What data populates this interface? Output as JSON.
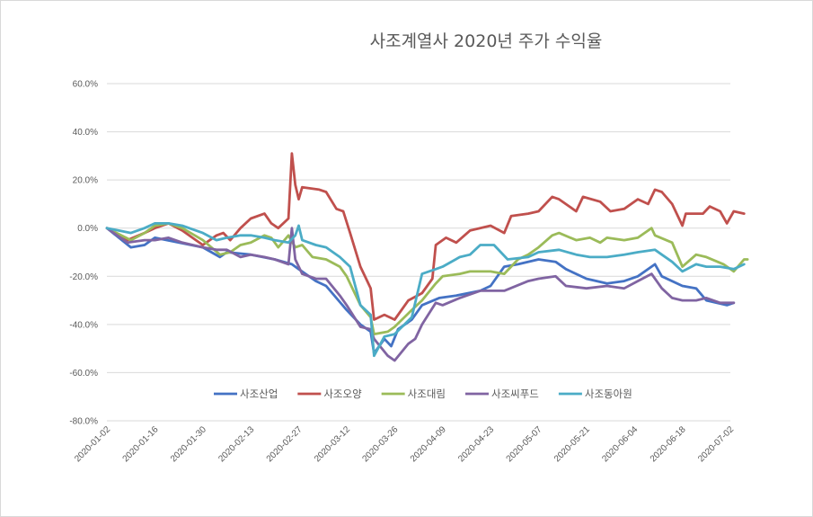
{
  "chart_data": {
    "type": "line",
    "title": "사조계열사 2020년 주가 수익율",
    "xlabel": "",
    "ylabel": "",
    "ylim": [
      -0.8,
      0.6
    ],
    "yticks": [
      0.6,
      0.4,
      0.2,
      0.0,
      -0.2,
      -0.4,
      -0.6,
      -0.8
    ],
    "ytick_labels": [
      "60.0%",
      "40.0%",
      "20.0%",
      "0.0%",
      "-20.0%",
      "-40.0%",
      "-60.0%",
      "-80.0%"
    ],
    "xticks": [
      "2020-01-02",
      "2020-01-16",
      "2020-01-30",
      "2020-02-13",
      "2020-02-27",
      "2020-03-12",
      "2020-03-26",
      "2020-04-09",
      "2020-04-23",
      "2020-05-07",
      "2020-05-21",
      "2020-06-04",
      "2020-06-18",
      "2020-07-02"
    ],
    "grid": true,
    "legend_position": "bottom-inside",
    "series": [
      {
        "name": "사조산업",
        "color": "#4472C4",
        "points": [
          [
            "2020-01-02",
            0.0
          ],
          [
            "2020-01-09",
            -0.08
          ],
          [
            "2020-01-13",
            -0.07
          ],
          [
            "2020-01-16",
            -0.04
          ],
          [
            "2020-01-23",
            -0.06
          ],
          [
            "2020-01-30",
            -0.08
          ],
          [
            "2020-02-04",
            -0.12
          ],
          [
            "2020-02-06",
            -0.1
          ],
          [
            "2020-02-13",
            -0.11
          ],
          [
            "2020-02-20",
            -0.13
          ],
          [
            "2020-02-25",
            -0.15
          ],
          [
            "2020-02-27",
            -0.17
          ],
          [
            "2020-03-03",
            -0.22
          ],
          [
            "2020-03-06",
            -0.24
          ],
          [
            "2020-03-12",
            -0.34
          ],
          [
            "2020-03-16",
            -0.4
          ],
          [
            "2020-03-19",
            -0.43
          ],
          [
            "2020-03-20",
            -0.52
          ],
          [
            "2020-03-23",
            -0.46
          ],
          [
            "2020-03-25",
            -0.49
          ],
          [
            "2020-03-27",
            -0.42
          ],
          [
            "2020-03-31",
            -0.38
          ],
          [
            "2020-04-03",
            -0.32
          ],
          [
            "2020-04-08",
            -0.29
          ],
          [
            "2020-04-13",
            -0.28
          ],
          [
            "2020-04-20",
            -0.26
          ],
          [
            "2020-04-23",
            -0.24
          ],
          [
            "2020-04-27",
            -0.16
          ],
          [
            "2020-05-01",
            -0.15
          ],
          [
            "2020-05-07",
            -0.13
          ],
          [
            "2020-05-12",
            -0.14
          ],
          [
            "2020-05-15",
            -0.17
          ],
          [
            "2020-05-21",
            -0.21
          ],
          [
            "2020-05-27",
            -0.23
          ],
          [
            "2020-06-01",
            -0.22
          ],
          [
            "2020-06-05",
            -0.2
          ],
          [
            "2020-06-10",
            -0.15
          ],
          [
            "2020-06-12",
            -0.2
          ],
          [
            "2020-06-18",
            -0.24
          ],
          [
            "2020-06-22",
            -0.25
          ],
          [
            "2020-06-25",
            -0.3
          ],
          [
            "2020-07-01",
            -0.32
          ],
          [
            "2020-07-03",
            -0.31
          ]
        ]
      },
      {
        "name": "사조오양",
        "color": "#C0504D",
        "points": [
          [
            "2020-01-02",
            0.0
          ],
          [
            "2020-01-08",
            -0.05
          ],
          [
            "2020-01-13",
            -0.02
          ],
          [
            "2020-01-16",
            0.0
          ],
          [
            "2020-01-20",
            0.02
          ],
          [
            "2020-01-24",
            -0.01
          ],
          [
            "2020-01-28",
            -0.05
          ],
          [
            "2020-01-30",
            -0.07
          ],
          [
            "2020-02-03",
            -0.03
          ],
          [
            "2020-02-05",
            -0.02
          ],
          [
            "2020-02-07",
            -0.05
          ],
          [
            "2020-02-10",
            0.0
          ],
          [
            "2020-02-13",
            0.04
          ],
          [
            "2020-02-17",
            0.06
          ],
          [
            "2020-02-19",
            0.02
          ],
          [
            "2020-02-21",
            0.0
          ],
          [
            "2020-02-24",
            0.04
          ],
          [
            "2020-02-25",
            0.31
          ],
          [
            "2020-02-26",
            0.18
          ],
          [
            "2020-02-27",
            0.12
          ],
          [
            "2020-02-28",
            0.17
          ],
          [
            "2020-03-04",
            0.16
          ],
          [
            "2020-03-06",
            0.15
          ],
          [
            "2020-03-09",
            0.08
          ],
          [
            "2020-03-11",
            0.07
          ],
          [
            "2020-03-13",
            -0.02
          ],
          [
            "2020-03-16",
            -0.16
          ],
          [
            "2020-03-18",
            -0.22
          ],
          [
            "2020-03-19",
            -0.25
          ],
          [
            "2020-03-20",
            -0.38
          ],
          [
            "2020-03-23",
            -0.36
          ],
          [
            "2020-03-26",
            -0.38
          ],
          [
            "2020-03-30",
            -0.3
          ],
          [
            "2020-04-03",
            -0.27
          ],
          [
            "2020-04-06",
            -0.21
          ],
          [
            "2020-04-07",
            -0.07
          ],
          [
            "2020-04-10",
            -0.04
          ],
          [
            "2020-04-13",
            -0.06
          ],
          [
            "2020-04-17",
            -0.01
          ],
          [
            "2020-04-23",
            0.01
          ],
          [
            "2020-04-27",
            -0.02
          ],
          [
            "2020-04-29",
            0.05
          ],
          [
            "2020-05-04",
            0.06
          ],
          [
            "2020-05-07",
            0.07
          ],
          [
            "2020-05-11",
            0.13
          ],
          [
            "2020-05-13",
            0.12
          ],
          [
            "2020-05-18",
            0.07
          ],
          [
            "2020-05-20",
            0.13
          ],
          [
            "2020-05-25",
            0.11
          ],
          [
            "2020-05-28",
            0.07
          ],
          [
            "2020-06-01",
            0.08
          ],
          [
            "2020-06-05",
            0.12
          ],
          [
            "2020-06-08",
            0.1
          ],
          [
            "2020-06-10",
            0.16
          ],
          [
            "2020-06-12",
            0.15
          ],
          [
            "2020-06-15",
            0.1
          ],
          [
            "2020-06-18",
            0.01
          ],
          [
            "2020-06-19",
            0.06
          ],
          [
            "2020-06-24",
            0.06
          ],
          [
            "2020-06-26",
            0.09
          ],
          [
            "2020-06-29",
            0.07
          ],
          [
            "2020-07-01",
            0.02
          ],
          [
            "2020-07-03",
            0.07
          ],
          [
            "2020-07-06",
            0.06
          ]
        ]
      },
      {
        "name": "사조대림",
        "color": "#9BBB59",
        "points": [
          [
            "2020-01-02",
            0.0
          ],
          [
            "2020-01-09",
            -0.05
          ],
          [
            "2020-01-13",
            -0.02
          ],
          [
            "2020-01-16",
            0.01
          ],
          [
            "2020-01-20",
            0.02
          ],
          [
            "2020-01-24",
            0.0
          ],
          [
            "2020-01-30",
            -0.05
          ],
          [
            "2020-02-04",
            -0.11
          ],
          [
            "2020-02-07",
            -0.1
          ],
          [
            "2020-02-10",
            -0.07
          ],
          [
            "2020-02-13",
            -0.06
          ],
          [
            "2020-02-17",
            -0.03
          ],
          [
            "2020-02-19",
            -0.04
          ],
          [
            "2020-02-21",
            -0.08
          ],
          [
            "2020-02-24",
            -0.03
          ],
          [
            "2020-02-26",
            -0.08
          ],
          [
            "2020-02-28",
            -0.07
          ],
          [
            "2020-03-02",
            -0.12
          ],
          [
            "2020-03-06",
            -0.13
          ],
          [
            "2020-03-10",
            -0.16
          ],
          [
            "2020-03-12",
            -0.2
          ],
          [
            "2020-03-16",
            -0.32
          ],
          [
            "2020-03-19",
            -0.37
          ],
          [
            "2020-03-20",
            -0.44
          ],
          [
            "2020-03-24",
            -0.43
          ],
          [
            "2020-03-26",
            -0.41
          ],
          [
            "2020-03-31",
            -0.34
          ],
          [
            "2020-04-03",
            -0.3
          ],
          [
            "2020-04-07",
            -0.23
          ],
          [
            "2020-04-09",
            -0.2
          ],
          [
            "2020-04-14",
            -0.19
          ],
          [
            "2020-04-17",
            -0.18
          ],
          [
            "2020-04-23",
            -0.18
          ],
          [
            "2020-04-27",
            -0.19
          ],
          [
            "2020-05-01",
            -0.13
          ],
          [
            "2020-05-04",
            -0.11
          ],
          [
            "2020-05-07",
            -0.08
          ],
          [
            "2020-05-11",
            -0.03
          ],
          [
            "2020-05-13",
            -0.02
          ],
          [
            "2020-05-18",
            -0.05
          ],
          [
            "2020-05-22",
            -0.04
          ],
          [
            "2020-05-25",
            -0.06
          ],
          [
            "2020-05-27",
            -0.04
          ],
          [
            "2020-06-01",
            -0.05
          ],
          [
            "2020-06-05",
            -0.04
          ],
          [
            "2020-06-09",
            0.0
          ],
          [
            "2020-06-10",
            -0.03
          ],
          [
            "2020-06-15",
            -0.06
          ],
          [
            "2020-06-18",
            -0.16
          ],
          [
            "2020-06-22",
            -0.11
          ],
          [
            "2020-06-25",
            -0.12
          ],
          [
            "2020-06-30",
            -0.15
          ],
          [
            "2020-07-03",
            -0.18
          ],
          [
            "2020-07-06",
            -0.13
          ],
          [
            "2020-07-07",
            -0.13
          ]
        ]
      },
      {
        "name": "사조씨푸드",
        "color": "#8064A2",
        "points": [
          [
            "2020-01-02",
            0.0
          ],
          [
            "2020-01-08",
            -0.06
          ],
          [
            "2020-01-13",
            -0.05
          ],
          [
            "2020-01-16",
            -0.05
          ],
          [
            "2020-01-20",
            -0.04
          ],
          [
            "2020-01-24",
            -0.06
          ],
          [
            "2020-01-30",
            -0.08
          ],
          [
            "2020-02-03",
            -0.09
          ],
          [
            "2020-02-06",
            -0.09
          ],
          [
            "2020-02-10",
            -0.12
          ],
          [
            "2020-02-13",
            -0.11
          ],
          [
            "2020-02-17",
            -0.12
          ],
          [
            "2020-02-20",
            -0.13
          ],
          [
            "2020-02-24",
            -0.15
          ],
          [
            "2020-02-25",
            0.0
          ],
          [
            "2020-02-26",
            -0.13
          ],
          [
            "2020-02-28",
            -0.19
          ],
          [
            "2020-03-03",
            -0.21
          ],
          [
            "2020-03-06",
            -0.21
          ],
          [
            "2020-03-10",
            -0.28
          ],
          [
            "2020-03-12",
            -0.32
          ],
          [
            "2020-03-16",
            -0.41
          ],
          [
            "2020-03-19",
            -0.42
          ],
          [
            "2020-03-20",
            -0.46
          ],
          [
            "2020-03-24",
            -0.53
          ],
          [
            "2020-03-26",
            -0.55
          ],
          [
            "2020-03-30",
            -0.48
          ],
          [
            "2020-04-01",
            -0.46
          ],
          [
            "2020-04-03",
            -0.4
          ],
          [
            "2020-04-07",
            -0.31
          ],
          [
            "2020-04-09",
            -0.32
          ],
          [
            "2020-04-14",
            -0.29
          ],
          [
            "2020-04-20",
            -0.26
          ],
          [
            "2020-04-27",
            -0.26
          ],
          [
            "2020-05-04",
            -0.22
          ],
          [
            "2020-05-07",
            -0.21
          ],
          [
            "2020-05-12",
            -0.2
          ],
          [
            "2020-05-15",
            -0.24
          ],
          [
            "2020-05-21",
            -0.25
          ],
          [
            "2020-05-27",
            -0.24
          ],
          [
            "2020-06-01",
            -0.25
          ],
          [
            "2020-06-05",
            -0.22
          ],
          [
            "2020-06-09",
            -0.19
          ],
          [
            "2020-06-12",
            -0.25
          ],
          [
            "2020-06-15",
            -0.29
          ],
          [
            "2020-06-18",
            -0.3
          ],
          [
            "2020-06-22",
            -0.3
          ],
          [
            "2020-06-25",
            -0.29
          ],
          [
            "2020-06-29",
            -0.31
          ],
          [
            "2020-07-03",
            -0.31
          ]
        ]
      },
      {
        "name": "사조동아원",
        "color": "#4BACC6",
        "points": [
          [
            "2020-01-02",
            0.0
          ],
          [
            "2020-01-09",
            -0.02
          ],
          [
            "2020-01-13",
            0.0
          ],
          [
            "2020-01-16",
            0.02
          ],
          [
            "2020-01-20",
            0.02
          ],
          [
            "2020-01-24",
            0.01
          ],
          [
            "2020-01-30",
            -0.02
          ],
          [
            "2020-02-03",
            -0.05
          ],
          [
            "2020-02-06",
            -0.04
          ],
          [
            "2020-02-10",
            -0.03
          ],
          [
            "2020-02-13",
            -0.03
          ],
          [
            "2020-02-17",
            -0.04
          ],
          [
            "2020-02-20",
            -0.05
          ],
          [
            "2020-02-24",
            -0.06
          ],
          [
            "2020-02-26",
            -0.03
          ],
          [
            "2020-02-27",
            0.01
          ],
          [
            "2020-02-28",
            -0.05
          ],
          [
            "2020-03-03",
            -0.07
          ],
          [
            "2020-03-06",
            -0.08
          ],
          [
            "2020-03-10",
            -0.12
          ],
          [
            "2020-03-13",
            -0.16
          ],
          [
            "2020-03-16",
            -0.32
          ],
          [
            "2020-03-19",
            -0.36
          ],
          [
            "2020-03-20",
            -0.53
          ],
          [
            "2020-03-23",
            -0.45
          ],
          [
            "2020-03-26",
            -0.44
          ],
          [
            "2020-03-31",
            -0.37
          ],
          [
            "2020-04-03",
            -0.19
          ],
          [
            "2020-04-07",
            -0.17
          ],
          [
            "2020-04-09",
            -0.16
          ],
          [
            "2020-04-14",
            -0.12
          ],
          [
            "2020-04-17",
            -0.11
          ],
          [
            "2020-04-20",
            -0.07
          ],
          [
            "2020-04-24",
            -0.07
          ],
          [
            "2020-04-28",
            -0.13
          ],
          [
            "2020-05-04",
            -0.12
          ],
          [
            "2020-05-07",
            -0.1
          ],
          [
            "2020-05-13",
            -0.09
          ],
          [
            "2020-05-18",
            -0.11
          ],
          [
            "2020-05-22",
            -0.12
          ],
          [
            "2020-05-27",
            -0.12
          ],
          [
            "2020-06-01",
            -0.11
          ],
          [
            "2020-06-05",
            -0.1
          ],
          [
            "2020-06-10",
            -0.09
          ],
          [
            "2020-06-12",
            -0.11
          ],
          [
            "2020-06-15",
            -0.14
          ],
          [
            "2020-06-18",
            -0.18
          ],
          [
            "2020-06-22",
            -0.15
          ],
          [
            "2020-06-25",
            -0.16
          ],
          [
            "2020-06-29",
            -0.16
          ],
          [
            "2020-07-03",
            -0.17
          ],
          [
            "2020-07-06",
            -0.15
          ]
        ]
      }
    ]
  }
}
